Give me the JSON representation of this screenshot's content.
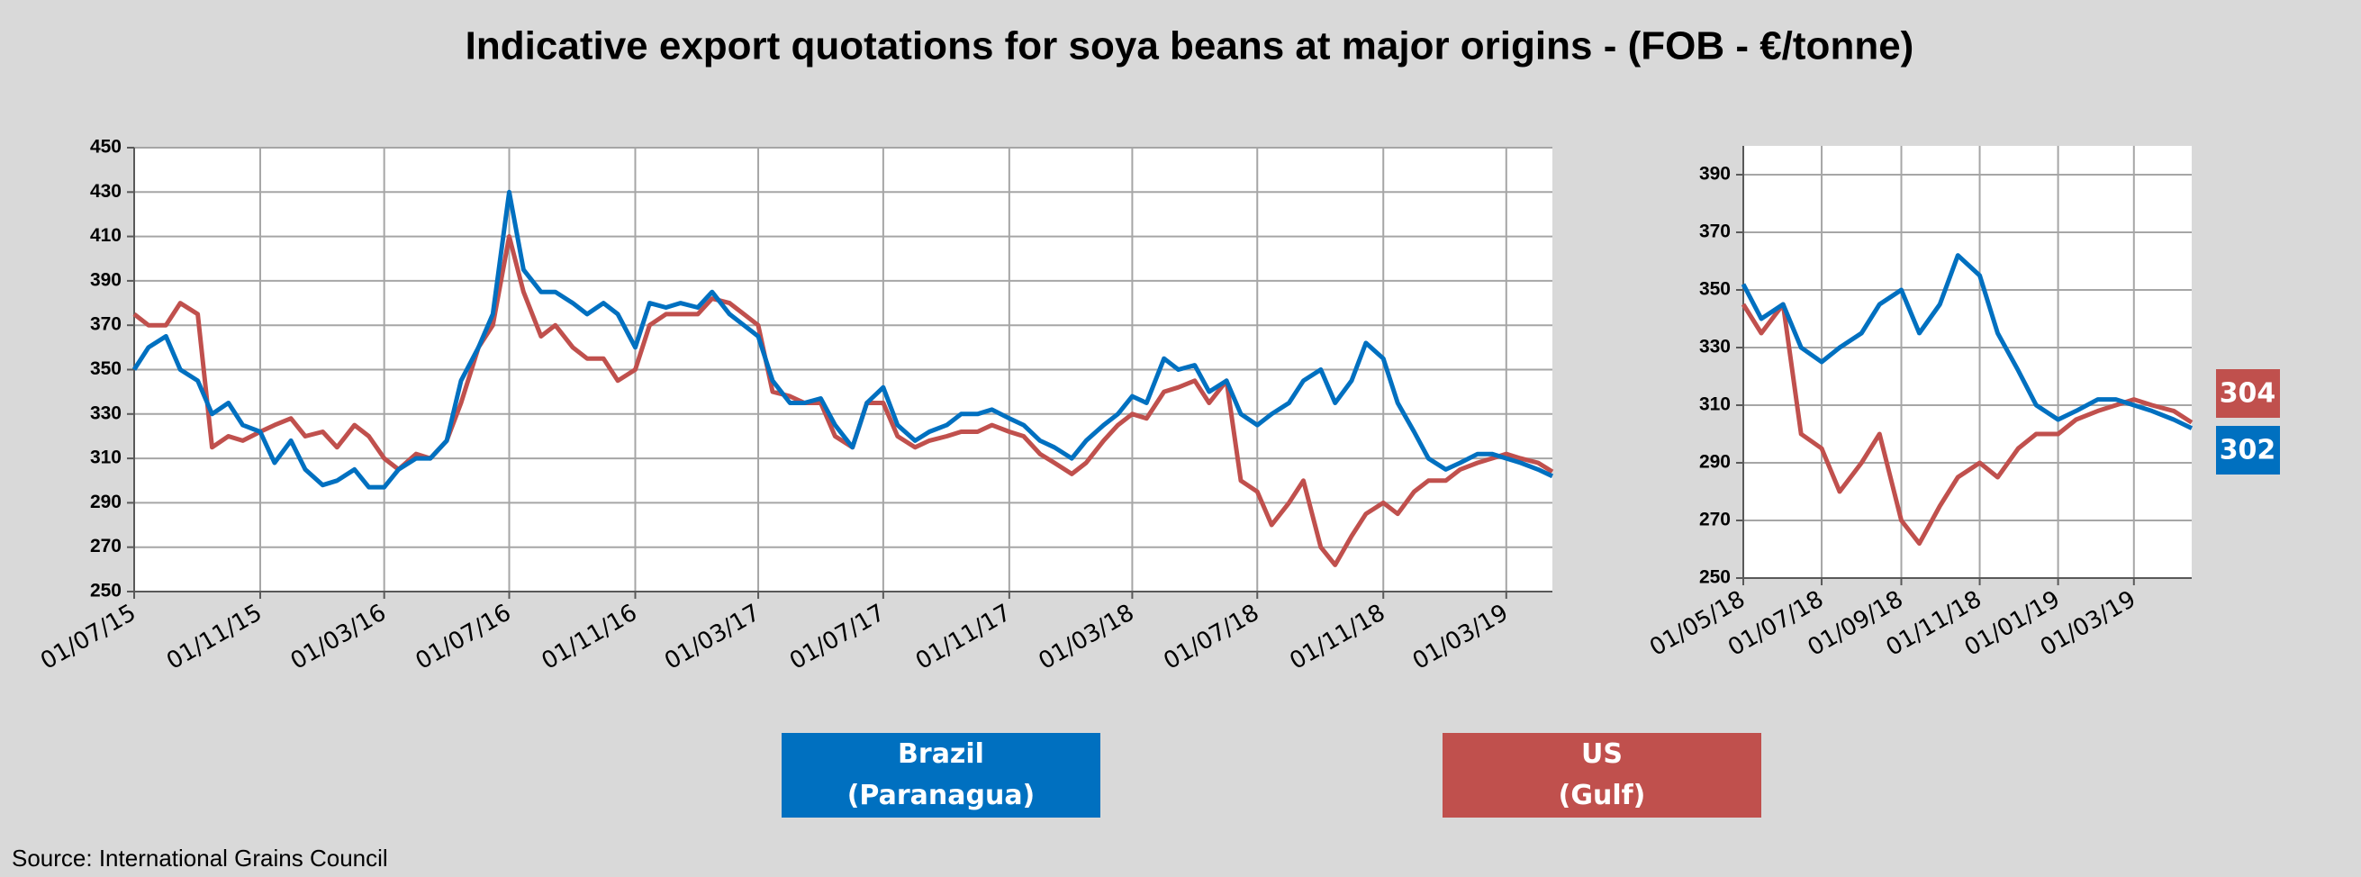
{
  "title": "Indicative export quotations for soya beans at major origins  - (FOB - €/tonne)",
  "source": "Source: International Grains Council",
  "chart_data": [
    {
      "type": "line",
      "x": [
        "01/07/15",
        "15/07/15",
        "01/08/15",
        "15/08/15",
        "01/09/15",
        "15/09/15",
        "01/10/15",
        "15/10/15",
        "01/11/15",
        "15/11/15",
        "01/12/15",
        "15/12/15",
        "01/01/16",
        "15/01/16",
        "01/02/16",
        "15/02/16",
        "01/03/16",
        "15/03/16",
        "01/04/16",
        "15/04/16",
        "01/05/16",
        "15/05/16",
        "01/06/16",
        "15/06/16",
        "01/07/16",
        "15/07/16",
        "01/08/16",
        "15/08/16",
        "01/09/16",
        "15/09/16",
        "01/10/16",
        "15/10/16",
        "01/11/16",
        "15/11/16",
        "01/12/16",
        "15/12/16",
        "01/01/17",
        "15/01/17",
        "01/02/17",
        "15/02/17",
        "01/03/17",
        "15/03/17",
        "01/04/17",
        "15/04/17",
        "01/05/17",
        "15/05/17",
        "01/06/17",
        "15/06/17",
        "01/07/17",
        "15/07/17",
        "01/08/17",
        "15/08/17",
        "01/09/17",
        "15/09/17",
        "01/10/17",
        "15/10/17",
        "01/11/17",
        "15/11/17",
        "01/12/17",
        "15/12/17",
        "01/01/18",
        "15/01/18",
        "01/02/18",
        "15/02/18",
        "01/03/18",
        "15/03/18",
        "01/04/18",
        "15/04/18",
        "01/05/18",
        "15/05/18",
        "01/06/18",
        "15/06/18",
        "01/07/18",
        "15/07/18",
        "01/08/18",
        "15/08/18",
        "01/09/18",
        "15/09/18",
        "01/10/18",
        "15/10/18",
        "01/11/18",
        "15/11/18",
        "01/12/18",
        "15/12/18",
        "01/01/19",
        "15/01/19",
        "01/02/19",
        "15/02/19",
        "01/03/19",
        "15/03/19",
        "01/04/19",
        "15/04/19"
      ],
      "series": [
        {
          "name": "Brazil (Paranagua)",
          "color": "#0070c0",
          "values": [
            350,
            360,
            365,
            350,
            345,
            330,
            335,
            325,
            322,
            308,
            318,
            305,
            298,
            300,
            305,
            297,
            297,
            305,
            310,
            310,
            318,
            345,
            360,
            375,
            430,
            395,
            385,
            385,
            380,
            375,
            380,
            375,
            360,
            380,
            378,
            380,
            378,
            385,
            375,
            370,
            365,
            345,
            335,
            335,
            337,
            325,
            315,
            335,
            342,
            325,
            318,
            322,
            325,
            330,
            330,
            332,
            328,
            325,
            318,
            315,
            310,
            318,
            325,
            330,
            338,
            335,
            355,
            350,
            352,
            340,
            345,
            330,
            325,
            330,
            335,
            345,
            350,
            335,
            345,
            362,
            355,
            335,
            322,
            310,
            305,
            308,
            312,
            312,
            310,
            308,
            305,
            302
          ]
        },
        {
          "name": "US (Gulf)",
          "color": "#c0504d",
          "values": [
            375,
            370,
            370,
            380,
            375,
            315,
            320,
            318,
            322,
            325,
            328,
            320,
            322,
            315,
            325,
            320,
            310,
            305,
            312,
            310,
            318,
            335,
            360,
            370,
            410,
            385,
            365,
            370,
            360,
            355,
            355,
            345,
            350,
            370,
            375,
            375,
            375,
            382,
            380,
            375,
            370,
            340,
            338,
            335,
            335,
            320,
            315,
            335,
            335,
            320,
            315,
            318,
            320,
            322,
            322,
            325,
            322,
            320,
            312,
            308,
            303,
            308,
            318,
            325,
            330,
            328,
            340,
            342,
            345,
            335,
            345,
            300,
            295,
            280,
            290,
            300,
            270,
            262,
            275,
            285,
            290,
            285,
            295,
            300,
            300,
            305,
            308,
            310,
            312,
            310,
            308,
            304
          ]
        }
      ],
      "xlim": [
        "01/07/15",
        "15/04/19"
      ],
      "xticks": [
        "01/07/15",
        "01/11/15",
        "01/03/16",
        "01/07/16",
        "01/11/16",
        "01/03/17",
        "01/07/17",
        "01/11/17",
        "01/03/18",
        "01/07/18",
        "01/11/18",
        "01/03/19"
      ],
      "ylim": [
        250,
        450
      ],
      "yticks": [
        250,
        270,
        290,
        310,
        330,
        350,
        370,
        390,
        410,
        430,
        450
      ],
      "grid": true
    },
    {
      "type": "line",
      "x": [
        "01/05/18",
        "15/05/18",
        "01/06/18",
        "15/06/18",
        "01/07/18",
        "15/07/18",
        "01/08/18",
        "15/08/18",
        "01/09/18",
        "15/09/18",
        "01/10/18",
        "15/10/18",
        "01/11/18",
        "15/11/18",
        "01/12/18",
        "15/12/18",
        "01/01/19",
        "15/01/19",
        "01/02/19",
        "15/02/19",
        "01/03/19",
        "15/03/19",
        "01/04/19",
        "15/04/19"
      ],
      "series": [
        {
          "name": "Brazil (Paranagua)",
          "color": "#0070c0",
          "values": [
            352,
            340,
            345,
            330,
            325,
            330,
            335,
            345,
            350,
            335,
            345,
            362,
            355,
            335,
            322,
            310,
            305,
            308,
            312,
            312,
            310,
            308,
            305,
            302
          ]
        },
        {
          "name": "US (Gulf)",
          "color": "#c0504d",
          "values": [
            345,
            335,
            345,
            300,
            295,
            280,
            290,
            300,
            270,
            262,
            275,
            285,
            290,
            285,
            295,
            300,
            300,
            305,
            308,
            310,
            312,
            310,
            308,
            304
          ]
        }
      ],
      "xlim": [
        "01/05/18",
        "15/04/19"
      ],
      "xticks": [
        "01/05/18",
        "01/07/18",
        "01/09/18",
        "01/11/18",
        "01/01/19",
        "01/03/19"
      ],
      "ylim": [
        250,
        400
      ],
      "yticks": [
        250,
        270,
        290,
        310,
        330,
        350,
        370,
        390
      ],
      "grid": true
    }
  ]
}
